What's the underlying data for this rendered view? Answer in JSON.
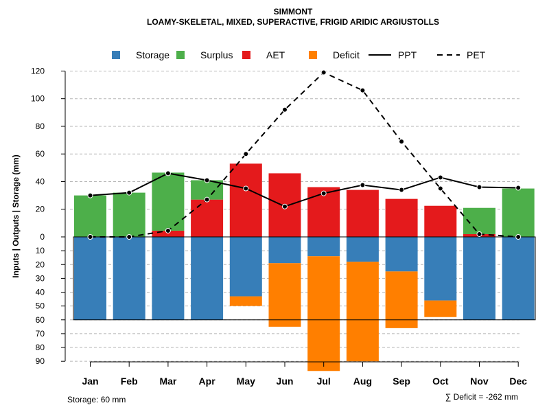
{
  "chart_data": {
    "type": "bar",
    "title": "SIMMONT",
    "subtitle": "LOAMY-SKELETAL, MIXED, SUPERACTIVE, FRIGID ARIDIC ARGIUSTOLLS",
    "ylabel": "Inputs | Outputs | Storage    (mm)",
    "categories": [
      "Jan",
      "Feb",
      "Mar",
      "Apr",
      "May",
      "Jun",
      "Jul",
      "Aug",
      "Sep",
      "Oct",
      "Nov",
      "Dec"
    ],
    "upper_ylim": [
      0,
      120
    ],
    "upper_ticks": [
      "0",
      "20",
      "40",
      "60",
      "80",
      "100",
      "120"
    ],
    "lower_ylim": [
      0,
      90
    ],
    "lower_ticks": [
      "10",
      "20",
      "30",
      "40",
      "50",
      "60",
      "70",
      "80",
      "90"
    ],
    "storage_capacity": 60,
    "series": [
      {
        "name": "Storage",
        "color": "#377eb8",
        "values": [
          60,
          60,
          60,
          60,
          43,
          19,
          14,
          18,
          25,
          46,
          60,
          60
        ]
      },
      {
        "name": "Surplus",
        "color": "#4daf4a",
        "values": [
          30,
          32,
          42,
          14,
          0,
          0,
          0,
          0,
          0,
          0,
          19,
          35
        ]
      },
      {
        "name": "AET",
        "color": "#e41a1c",
        "values": [
          0,
          0,
          4.5,
          27,
          53,
          46,
          36,
          34,
          27.5,
          22.5,
          2,
          0
        ]
      },
      {
        "name": "Deficit",
        "color": "#ff7f00",
        "values": [
          0,
          0,
          0,
          0,
          7,
          46,
          83,
          72,
          41,
          12,
          0,
          0
        ]
      },
      {
        "name": "PPT",
        "style": "solid",
        "values": [
          30,
          32,
          46,
          41,
          35,
          22,
          31.5,
          37.5,
          34,
          43,
          36,
          35.5
        ]
      },
      {
        "name": "PET",
        "style": "dashed",
        "values": [
          0,
          0,
          4.5,
          27,
          60,
          92,
          119,
          106,
          69,
          35,
          2,
          0
        ]
      }
    ],
    "legend": [
      {
        "name": "Storage",
        "kind": "box",
        "color": "#377eb8"
      },
      {
        "name": "Surplus",
        "kind": "box",
        "color": "#4daf4a"
      },
      {
        "name": "AET",
        "kind": "box",
        "color": "#e41a1c"
      },
      {
        "name": "Deficit",
        "kind": "box",
        "color": "#ff7f00"
      },
      {
        "name": "PPT",
        "kind": "line",
        "dash": false
      },
      {
        "name": "PET",
        "kind": "line",
        "dash": true
      }
    ],
    "legend_position": "top",
    "storage_note": "Storage: 60 mm",
    "deficit_note": "∑ Deficit = -262 mm",
    "grid": true
  }
}
